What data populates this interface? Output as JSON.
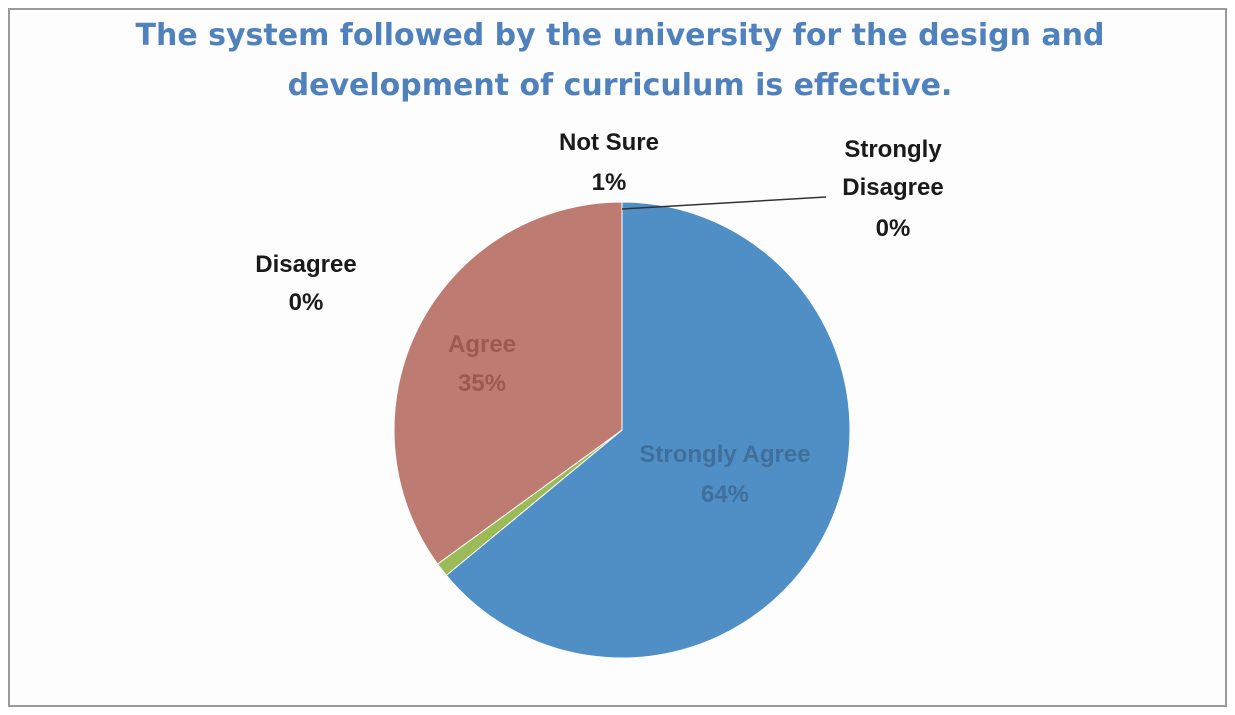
{
  "chart_data": {
    "type": "pie",
    "title_line1": "The system followed by the university for the design and",
    "title_line2": "development of curriculum is effective.",
    "slices": [
      {
        "label": "Strongly Agree",
        "percent_label": "64%",
        "value": 64,
        "color": "#4f8fc6"
      },
      {
        "label": "Strongly Disagree",
        "percent_label": "0%",
        "value": 0,
        "color": "#9bbb59"
      },
      {
        "label": "Not Sure",
        "percent_label": "1%",
        "value": 1,
        "color": "#9bbb59"
      },
      {
        "label": "Agree",
        "percent_label": "35%",
        "value": 35,
        "color": "#bd7b72"
      },
      {
        "label": "Disagree",
        "percent_label": "0%",
        "value": 0,
        "color": "#8064a2"
      }
    ]
  }
}
